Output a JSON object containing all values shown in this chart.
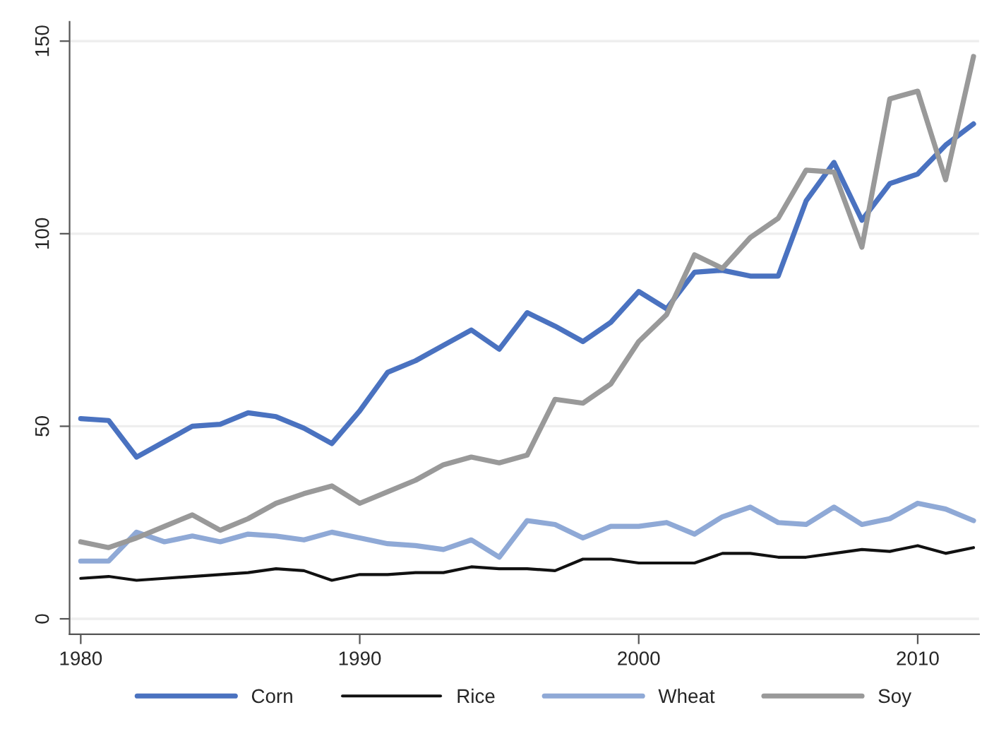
{
  "chart_data": {
    "type": "line",
    "x": [
      1980,
      1981,
      1982,
      1983,
      1984,
      1985,
      1986,
      1987,
      1988,
      1989,
      1990,
      1991,
      1992,
      1993,
      1994,
      1995,
      1996,
      1997,
      1998,
      1999,
      2000,
      2001,
      2002,
      2003,
      2004,
      2005,
      2006,
      2007,
      2008,
      2009,
      2010,
      2011,
      2012
    ],
    "series": [
      {
        "name": "Corn",
        "color": "#4a72c0",
        "values": [
          52,
          51.5,
          42,
          46,
          50,
          50.5,
          53.5,
          52.5,
          49.5,
          45.5,
          54,
          64,
          67,
          71,
          75,
          70,
          79.5,
          76,
          72,
          77,
          85,
          80.5,
          90,
          90.5,
          89,
          89,
          108.5,
          118.5,
          103.5,
          113,
          115.5,
          123,
          128.5
        ]
      },
      {
        "name": "Rice",
        "color": "#111111",
        "values": [
          10.5,
          11,
          10,
          10.5,
          11,
          11.5,
          12,
          13,
          12.5,
          10,
          11.5,
          11.5,
          12,
          12,
          13.5,
          13,
          13,
          12.5,
          15.5,
          15.5,
          14.5,
          14.5,
          14.5,
          17,
          17,
          16,
          16,
          17,
          18,
          17.5,
          19,
          17,
          18.5
        ]
      },
      {
        "name": "Wheat",
        "color": "#8fa9d6",
        "values": [
          15,
          15,
          22.5,
          20,
          21.5,
          20,
          22,
          21.5,
          20.5,
          22.5,
          21,
          19.5,
          19,
          18,
          20.5,
          16,
          25.5,
          24.5,
          21,
          24,
          24,
          25,
          22,
          26.5,
          29,
          25,
          24.5,
          29,
          24.5,
          26,
          30,
          28.5,
          25.5
        ]
      },
      {
        "name": "Soy",
        "color": "#999999",
        "values": [
          20,
          18.5,
          21,
          24,
          27,
          23,
          26,
          30,
          32.5,
          34.5,
          30,
          33,
          36,
          40,
          42,
          40.5,
          42.5,
          57,
          56,
          61,
          72,
          79,
          94.5,
          91,
          99,
          104,
          116.5,
          116,
          96.5,
          135,
          137,
          114,
          146
        ]
      }
    ],
    "xlim": [
      1979.6,
      2012.2
    ],
    "xticks": [
      1980,
      1990,
      2000,
      2010
    ],
    "ylim": [
      -4,
      155
    ],
    "yticks": [
      0,
      50,
      100,
      150
    ],
    "grid": "y",
    "legend": "bottom",
    "line_style": "solid"
  }
}
